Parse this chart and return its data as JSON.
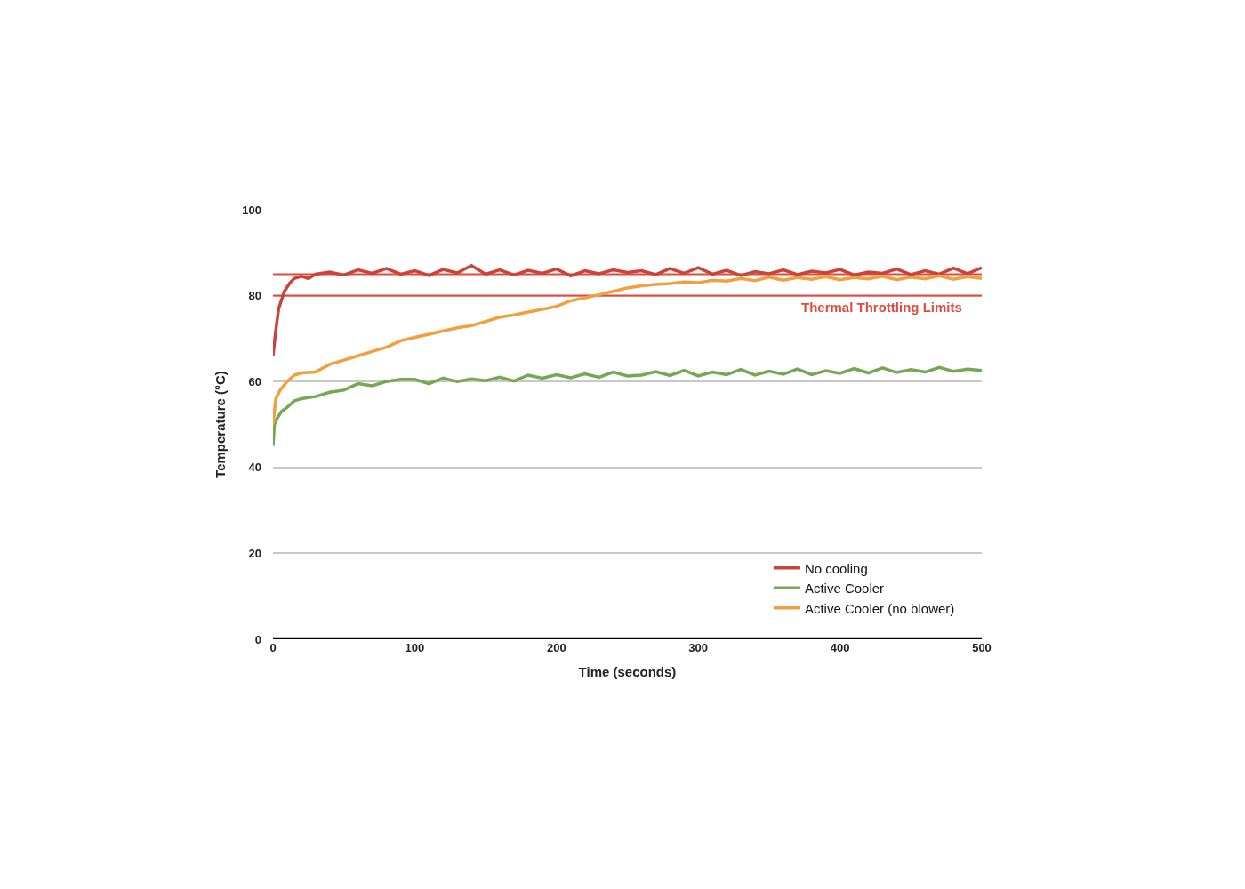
{
  "chart_data": {
    "type": "line",
    "xlabel": "Time (seconds)",
    "ylabel": "Temperature (°C)",
    "xlim": [
      0,
      500
    ],
    "xticks": [
      0,
      100,
      200,
      300,
      400,
      500
    ],
    "ylim": [
      0,
      100
    ],
    "yticks": [
      0,
      20,
      40,
      60,
      80,
      100
    ],
    "grid": "y",
    "legend": "bottom right",
    "marker": "none",
    "line_style": "solid",
    "ref_lines": [
      {
        "axis": "y",
        "value": 85,
        "label": null,
        "color": "#e34a3c"
      },
      {
        "axis": "y",
        "value": 80,
        "label": "Thermal Throttling Limits",
        "color": "#e34a3c"
      }
    ],
    "series": [
      {
        "name": "No cooling",
        "color": "#c9453a",
        "x": [
          0,
          2,
          4,
          6,
          8,
          10,
          12,
          15,
          20,
          25,
          30,
          40,
          50,
          60,
          70,
          80,
          90,
          100,
          110,
          120,
          130,
          140,
          150,
          160,
          170,
          180,
          190,
          200,
          210,
          220,
          230,
          240,
          250,
          260,
          270,
          280,
          290,
          300,
          310,
          320,
          330,
          340,
          350,
          360,
          370,
          380,
          390,
          400,
          410,
          420,
          430,
          440,
          450,
          460,
          470,
          480,
          490,
          500
        ],
        "values": [
          66,
          72,
          77,
          79,
          81,
          82,
          83,
          84,
          84.5,
          84,
          85,
          85.5,
          84.8,
          86,
          85.2,
          86.3,
          85,
          85.8,
          84.7,
          86.1,
          85.3,
          87,
          85,
          86,
          84.8,
          85.9,
          85.2,
          86.2,
          84.6,
          85.8,
          85.1,
          86,
          85.4,
          85.8,
          84.9,
          86.3,
          85.2,
          86.5,
          85,
          85.9,
          84.7,
          85.6,
          85.1,
          86,
          84.9,
          85.7,
          85.3,
          86.1,
          84.8,
          85.5,
          85.2,
          86.2,
          84.9,
          85.8,
          85,
          86.4,
          85.1,
          86.5
        ]
      },
      {
        "name": "Active Cooler",
        "color": "#76a854",
        "x": [
          0,
          1,
          3,
          6,
          10,
          15,
          20,
          30,
          40,
          50,
          60,
          70,
          80,
          90,
          100,
          110,
          120,
          130,
          140,
          150,
          160,
          170,
          180,
          190,
          200,
          210,
          220,
          230,
          240,
          250,
          260,
          270,
          280,
          290,
          300,
          310,
          320,
          330,
          340,
          350,
          360,
          370,
          380,
          390,
          400,
          410,
          420,
          430,
          440,
          450,
          460,
          470,
          480,
          490,
          500
        ],
        "values": [
          45,
          50,
          51.5,
          53,
          54,
          55.5,
          56,
          56.5,
          57.5,
          58,
          59.5,
          59,
          60,
          60.5,
          60.5,
          59.5,
          60.8,
          60,
          60.6,
          60.2,
          61,
          60.1,
          61.5,
          60.8,
          61.6,
          60.9,
          61.8,
          61,
          62.2,
          61.3,
          61.5,
          62.3,
          61.4,
          62.6,
          61.3,
          62.2,
          61.6,
          62.8,
          61.5,
          62.4,
          61.7,
          62.9,
          61.6,
          62.5,
          61.9,
          63,
          62,
          63.2,
          62.1,
          62.8,
          62.2,
          63.3,
          62.4,
          62.9,
          62.6
        ]
      },
      {
        "name": "Active Cooler (no blower)",
        "color": "#f0a03c",
        "x": [
          0,
          2,
          5,
          10,
          15,
          20,
          30,
          40,
          50,
          60,
          70,
          80,
          90,
          100,
          110,
          120,
          130,
          140,
          150,
          160,
          170,
          180,
          190,
          200,
          210,
          220,
          230,
          240,
          250,
          260,
          270,
          280,
          290,
          300,
          310,
          320,
          330,
          340,
          350,
          360,
          370,
          380,
          390,
          400,
          410,
          420,
          430,
          440,
          450,
          460,
          470,
          480,
          490,
          500
        ],
        "values": [
          50,
          56,
          58,
          60,
          61.5,
          62,
          62.2,
          64,
          65,
          66,
          67,
          68,
          69.5,
          70.3,
          71,
          71.8,
          72.5,
          73,
          74,
          75,
          75.5,
          76.2,
          76.8,
          77.5,
          78.8,
          79.5,
          80.2,
          81,
          81.8,
          82.3,
          82.6,
          82.8,
          83.2,
          83,
          83.6,
          83.4,
          84,
          83.5,
          84.3,
          83.6,
          84.2,
          83.8,
          84.4,
          83.7,
          84.2,
          83.9,
          84.5,
          83.7,
          84.3,
          83.9,
          84.6,
          83.8,
          84.4,
          84
        ]
      }
    ]
  }
}
